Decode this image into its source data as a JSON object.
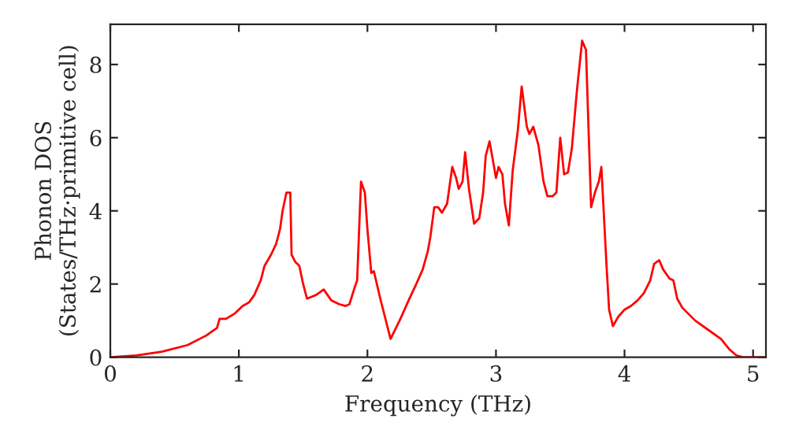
{
  "chart_data": {
    "type": "line",
    "xlabel": "Frequency (THz)",
    "ylabel": "Phonon DOS\n(States/THz·primitive cell)",
    "xlim": [
      0,
      5.1
    ],
    "ylim": [
      0,
      9.1
    ],
    "xticks": [
      0,
      1,
      2,
      3,
      4,
      5
    ],
    "yticks": [
      0,
      2,
      4,
      6,
      8
    ],
    "grid": false,
    "legend": false,
    "series": [
      {
        "color": "#ff0000",
        "x": [
          0,
          0.2,
          0.4,
          0.6,
          0.75,
          0.83,
          0.85,
          0.9,
          0.97,
          1.03,
          1.08,
          1.12,
          1.17,
          1.2,
          1.25,
          1.29,
          1.32,
          1.34,
          1.37,
          1.4,
          1.41,
          1.44,
          1.47,
          1.5,
          1.53,
          1.6,
          1.66,
          1.72,
          1.78,
          1.83,
          1.86,
          1.9,
          1.92,
          1.95,
          1.98,
          2.0,
          2.03,
          2.05,
          2.1,
          2.18,
          2.25,
          2.32,
          2.38,
          2.43,
          2.47,
          2.49,
          2.52,
          2.55,
          2.58,
          2.62,
          2.66,
          2.69,
          2.71,
          2.74,
          2.76,
          2.79,
          2.83,
          2.87,
          2.9,
          2.92,
          2.95,
          2.98,
          3.0,
          3.02,
          3.05,
          3.07,
          3.1,
          3.13,
          3.17,
          3.2,
          3.24,
          3.26,
          3.29,
          3.33,
          3.37,
          3.4,
          3.44,
          3.47,
          3.5,
          3.53,
          3.56,
          3.59,
          3.63,
          3.67,
          3.7,
          3.74,
          3.77,
          3.8,
          3.82,
          3.86,
          3.88,
          3.91,
          3.95,
          4.0,
          4.05,
          4.1,
          4.15,
          4.2,
          4.23,
          4.27,
          4.3,
          4.35,
          4.38,
          4.41,
          4.45,
          4.55,
          4.65,
          4.75,
          4.82,
          4.87,
          4.92,
          5.08
        ],
        "values": [
          0,
          0.05,
          0.15,
          0.33,
          0.6,
          0.8,
          1.05,
          1.05,
          1.2,
          1.4,
          1.5,
          1.7,
          2.1,
          2.5,
          2.8,
          3.1,
          3.5,
          4.0,
          4.5,
          4.5,
          2.8,
          2.6,
          2.5,
          2.0,
          1.6,
          1.7,
          1.85,
          1.55,
          1.45,
          1.4,
          1.45,
          1.9,
          2.1,
          4.8,
          4.5,
          3.5,
          2.3,
          2.35,
          1.6,
          0.5,
          1.0,
          1.55,
          2.0,
          2.4,
          2.9,
          3.3,
          4.1,
          4.1,
          3.95,
          4.2,
          5.2,
          4.9,
          4.6,
          4.8,
          5.6,
          4.6,
          3.65,
          3.8,
          4.5,
          5.5,
          5.9,
          5.3,
          4.9,
          5.2,
          5.0,
          4.2,
          3.6,
          5.1,
          6.2,
          7.4,
          6.3,
          6.1,
          6.3,
          5.8,
          4.8,
          4.4,
          4.4,
          4.5,
          6.0,
          5.0,
          5.05,
          5.7,
          7.3,
          8.65,
          8.4,
          4.1,
          4.5,
          4.8,
          5.2,
          2.5,
          1.3,
          0.85,
          1.1,
          1.3,
          1.4,
          1.55,
          1.75,
          2.1,
          2.55,
          2.65,
          2.4,
          2.15,
          2.1,
          1.6,
          1.35,
          1.0,
          0.75,
          0.5,
          0.2,
          0.05,
          0.0,
          0.0
        ]
      }
    ]
  }
}
